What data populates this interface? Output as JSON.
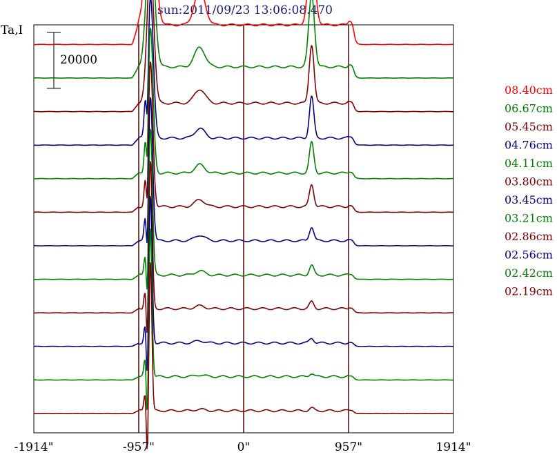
{
  "chart_data": {
    "type": "line",
    "title": "sun:2011/09/23 13:06:08.470",
    "ylabel": "Ta,I",
    "scale_bar_label": "20000",
    "xlim": [
      -1914,
      1914
    ],
    "xticks": [
      {
        "value": -1914,
        "label": "-1914\""
      },
      {
        "value": -957,
        "label": "-957\""
      },
      {
        "value": 0,
        "label": "0\""
      },
      {
        "value": 957,
        "label": "957\""
      },
      {
        "value": 1914,
        "label": "1914\""
      }
    ],
    "vlines": [
      -957,
      0,
      957
    ],
    "limb_peak_x": -850,
    "series": [
      {
        "name": "08.40cm",
        "color": "#ff0000",
        "base": 92000,
        "peaks": [
          -850,
          -400,
          620
        ],
        "amps": [
          48000,
          13000,
          26000
        ],
        "widths": [
          42,
          48,
          32
        ],
        "lift": 7000
      },
      {
        "name": "06.67cm",
        "color": "#008000",
        "base": 80000,
        "peaks": [
          -850,
          -400,
          620
        ],
        "amps": [
          50000,
          7000,
          26000
        ],
        "widths": [
          36,
          48,
          26
        ],
        "lift": 4000
      },
      {
        "name": "05.45cm",
        "color": "#800000",
        "base": 68000,
        "peaks": [
          -850,
          -400,
          620
        ],
        "amps": [
          51000,
          5000,
          21000
        ],
        "widths": [
          30,
          48,
          22
        ],
        "lift": 3000
      },
      {
        "name": "04.76cm",
        "color": "#000080",
        "base": 56000,
        "peaks": [
          -850,
          -400,
          620
        ],
        "amps": [
          51000,
          3500,
          15000
        ],
        "widths": [
          26,
          45,
          20
        ],
        "lift": 2500
      },
      {
        "name": "04.11cm",
        "color": "#008000",
        "base": 44000,
        "peaks": [
          -850,
          -400,
          620
        ],
        "amps": [
          52000,
          3000,
          11000
        ],
        "widths": [
          24,
          45,
          20
        ],
        "lift": 2000
      },
      {
        "name": "03.80cm",
        "color": "#800000",
        "base": 32000,
        "peaks": [
          -850,
          -400,
          620
        ],
        "amps": [
          52000,
          2500,
          8000
        ],
        "widths": [
          22,
          45,
          20
        ],
        "lift": 2000
      },
      {
        "name": "03.45cm",
        "color": "#000080",
        "base": 20000,
        "peaks": [
          -850,
          -400,
          620
        ],
        "amps": [
          52000,
          2000,
          5000
        ],
        "widths": [
          20,
          45,
          20
        ],
        "lift": 1800
      },
      {
        "name": "03.21cm",
        "color": "#008000",
        "base": 8000,
        "peaks": [
          -850,
          -400,
          620
        ],
        "amps": [
          53000,
          1500,
          3500
        ],
        "widths": [
          18,
          45,
          20
        ],
        "lift": 1500
      },
      {
        "name": "02.86cm",
        "color": "#800000",
        "base": -4000,
        "peaks": [
          -850,
          -400,
          620
        ],
        "amps": [
          53000,
          1000,
          2500
        ],
        "widths": [
          16,
          45,
          20
        ],
        "lift": 1500
      },
      {
        "name": "02.56cm",
        "color": "#000080",
        "base": -16000,
        "peaks": [
          -850,
          -400,
          620
        ],
        "amps": [
          53000,
          800,
          1800
        ],
        "widths": [
          15,
          45,
          20
        ],
        "lift": 1200
      },
      {
        "name": "02.42cm",
        "color": "#008000",
        "base": -28000,
        "peaks": [
          -850,
          -400,
          620
        ],
        "amps": [
          54000,
          600,
          1200
        ],
        "widths": [
          14,
          45,
          20
        ],
        "lift": 1200
      },
      {
        "name": "02.19cm",
        "color": "#800000",
        "base": -40000,
        "peaks": [
          -850,
          -400,
          620
        ],
        "amps": [
          54000,
          500,
          1000
        ],
        "widths": [
          13,
          45,
          20
        ],
        "lift": 1000
      }
    ]
  }
}
